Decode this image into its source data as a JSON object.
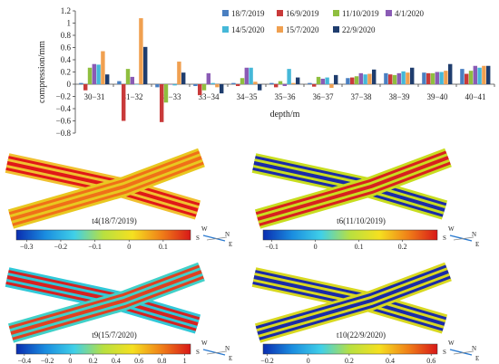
{
  "chart_data": {
    "type": "bar",
    "title": "",
    "xlabel": "depth/m",
    "ylabel": "compression/mm",
    "ylim": [
      -0.8,
      1.2
    ],
    "yticks": [
      "1.2",
      "1",
      "0.8",
      "0.6",
      "0.4",
      "0.2",
      "0",
      "−0.2",
      "−0.4",
      "−0.6",
      "−0.8"
    ],
    "ytick_values": [
      1.2,
      1.0,
      0.8,
      0.6,
      0.4,
      0.2,
      0,
      -0.2,
      -0.4,
      -0.6,
      -0.8
    ],
    "grid": false,
    "legend_position": "top-right",
    "categories": [
      "30−31",
      "31−32",
      "32−33",
      "33−34",
      "34−35",
      "35−36",
      "36−37",
      "37−38",
      "38−39",
      "39−40",
      "40−41"
    ],
    "series": [
      {
        "name": "18/7/2019",
        "color": "#4a7fc1",
        "values": [
          0.02,
          0.05,
          -0.05,
          -0.03,
          0.02,
          0.02,
          0.02,
          0.1,
          0.18,
          0.19,
          0.25
        ]
      },
      {
        "name": "16/9/2019",
        "color": "#c93a3a",
        "values": [
          -0.1,
          -0.6,
          -0.62,
          -0.18,
          -0.03,
          -0.05,
          -0.04,
          0.11,
          0.16,
          0.18,
          0.17
        ]
      },
      {
        "name": "11/10/2019",
        "color": "#8fbf3f",
        "values": [
          0.27,
          0.25,
          -0.3,
          -0.1,
          0.1,
          0.05,
          0.12,
          0.13,
          0.15,
          0.18,
          0.22
        ]
      },
      {
        "name": "4/1/2020",
        "color": "#8a5bb5",
        "values": [
          0.33,
          0.12,
          0.0,
          0.18,
          0.27,
          -0.03,
          0.09,
          0.18,
          0.18,
          0.2,
          0.3
        ]
      },
      {
        "name": "14/5/2020",
        "color": "#45b8d8",
        "values": [
          0.32,
          0.0,
          -0.02,
          0.02,
          0.27,
          0.25,
          0.11,
          0.16,
          0.21,
          0.2,
          0.27
        ]
      },
      {
        "name": "15/7/2020",
        "color": "#f0a050",
        "values": [
          0.54,
          1.08,
          0.37,
          -0.05,
          0.04,
          0.02,
          -0.06,
          0.17,
          0.19,
          0.22,
          0.3
        ]
      },
      {
        "name": "22/9/2020",
        "color": "#1f3d6e",
        "values": [
          0.16,
          0.61,
          0.19,
          -0.15,
          -0.1,
          0.11,
          0.15,
          0.24,
          0.27,
          0.33,
          0.3
        ]
      }
    ]
  },
  "panels": [
    {
      "label": "t4(18/7/2019)",
      "ticks": [
        "−0.3",
        "−0.2",
        "−0.1",
        "0",
        "0.1"
      ],
      "tick_values": [
        -0.3,
        -0.2,
        -0.1,
        0,
        0.1
      ],
      "range": [
        -0.33,
        0.18
      ],
      "colors": [
        "#f0c030",
        "#e01818",
        "#e8c820",
        "#f07018"
      ]
    },
    {
      "label": "t6(11/10/2019)",
      "ticks": [
        "−0.1",
        "0",
        "0.1",
        "0.2"
      ],
      "tick_values": [
        -0.1,
        0,
        0.1,
        0.2
      ],
      "range": [
        -0.12,
        0.28
      ],
      "colors": [
        "#c8dd20",
        "#1a2aa8",
        "#c8dd20",
        "#d82020"
      ]
    },
    {
      "label": "t9(15/7/2020)",
      "ticks": [
        "−0.4",
        "−0.2",
        "0",
        "0.2",
        "0.4",
        "0.6",
        "0.8",
        "1"
      ],
      "tick_values": [
        -0.4,
        -0.2,
        0,
        0.2,
        0.4,
        0.6,
        0.8,
        1
      ],
      "range": [
        -0.47,
        1.05
      ],
      "colors": [
        "#30c8d8",
        "#d82020",
        "#40d0c8",
        "#e04020"
      ]
    },
    {
      "label": "t10(22/9/2020)",
      "ticks": [
        "−0.2",
        "0",
        "0.2",
        "0.4",
        "0.6"
      ],
      "tick_values": [
        -0.2,
        0,
        0.2,
        0.4,
        0.6
      ],
      "range": [
        -0.22,
        0.63
      ],
      "colors": [
        "#d8d820",
        "#1a2aa8",
        "#d8d820",
        "#1a2aa8"
      ]
    }
  ],
  "compass": {
    "n": "N",
    "s": "S",
    "e": "E",
    "w": "W"
  }
}
